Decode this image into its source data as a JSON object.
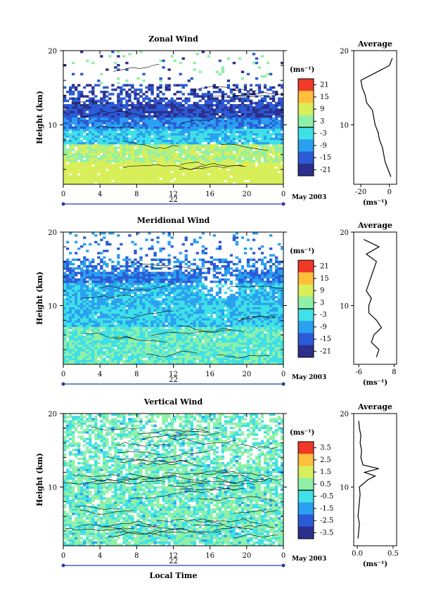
{
  "chart_data": [
    {
      "type": "heatmap",
      "title": "Zonal Wind",
      "ylabel": "Height (km)",
      "x_ticks": [
        "0",
        "4",
        "8",
        "12",
        "16",
        "20",
        "0"
      ],
      "x_range_hours": [
        0,
        24
      ],
      "y_range_km": [
        2,
        20
      ],
      "y_ticks": [
        "20",
        "10"
      ],
      "date_label": "May 2003",
      "day_label": "22",
      "colorbar": {
        "unit": "(ms⁻¹)",
        "ticks": [
          "21",
          "15",
          "9",
          "3",
          "-3",
          "-9",
          "-15",
          "-21"
        ],
        "range": [
          -24,
          24
        ]
      },
      "profile": {
        "title": "Average",
        "xlabel": "(ms⁻¹)",
        "x_ticks": [
          "-20",
          "0"
        ],
        "x_range": [
          -25,
          5
        ],
        "y_ticks": [
          "20",
          "10"
        ],
        "heights": [
          3,
          4,
          5,
          6,
          7,
          8,
          9,
          10,
          11,
          12,
          13,
          14,
          15,
          16,
          17,
          18,
          19
        ],
        "values": [
          1,
          -1,
          -3,
          -4,
          -5,
          -7,
          -8,
          -10,
          -11,
          -12,
          -16,
          -17,
          -19,
          -20,
          -10,
          0,
          2
        ]
      }
    },
    {
      "type": "heatmap",
      "title": "Meridional Wind",
      "ylabel": "Height (km)",
      "x_ticks": [
        "0",
        "4",
        "8",
        "12",
        "16",
        "20",
        "0"
      ],
      "x_range_hours": [
        0,
        24
      ],
      "y_range_km": [
        2,
        20
      ],
      "y_ticks": [
        "20",
        "10"
      ],
      "date_label": "May 2003",
      "day_label": "22",
      "colorbar": {
        "unit": "(ms⁻¹)",
        "ticks": [
          "21",
          "15",
          "9",
          "3",
          "-3",
          "-9",
          "-15",
          "-21"
        ],
        "range": [
          -24,
          24
        ]
      },
      "profile": {
        "title": "Average",
        "xlabel": "(ms⁻¹)",
        "x_ticks": [
          "-6",
          "8"
        ],
        "x_range": [
          -8,
          9
        ],
        "y_ticks": [
          "20",
          "10"
        ],
        "heights": [
          3,
          4,
          5,
          6,
          7,
          8,
          9,
          10,
          11,
          12,
          13,
          14,
          15,
          16,
          17,
          18,
          19
        ],
        "values": [
          1,
          2,
          -1,
          0,
          3,
          1,
          -2,
          -2,
          -1,
          -3,
          -2,
          -1,
          0,
          1,
          -3,
          2,
          -4
        ]
      }
    },
    {
      "type": "heatmap",
      "title": "Vertical Wind",
      "xlabel": "Local Time",
      "ylabel": "Height (km)",
      "x_ticks": [
        "0",
        "4",
        "8",
        "12",
        "16",
        "20",
        "0"
      ],
      "x_range_hours": [
        0,
        24
      ],
      "y_range_km": [
        2,
        20
      ],
      "y_ticks": [
        "20",
        "10"
      ],
      "date_label": "May 2003",
      "day_label": "22",
      "colorbar": {
        "unit": "(ms⁻¹)",
        "ticks": [
          "3.5",
          "2.5",
          "1.5",
          "0.5",
          "-0.5",
          "-1.5",
          "-2.5",
          "-3.5"
        ],
        "range": [
          -4,
          4
        ]
      },
      "profile": {
        "title": "Average",
        "xlabel": "(ms⁻¹)",
        "x_ticks": [
          "0.0",
          "0.5"
        ],
        "x_range": [
          -0.05,
          0.55
        ],
        "y_ticks": [
          "20",
          "10"
        ],
        "heights": [
          3,
          4,
          5,
          6,
          7,
          8,
          9,
          10,
          11,
          11.5,
          12,
          12.5,
          13,
          14,
          15,
          16,
          17,
          18,
          19
        ],
        "values": [
          0.01,
          0.02,
          0.03,
          0.01,
          0.02,
          0.03,
          0.04,
          0.03,
          0.15,
          0.25,
          0.1,
          0.3,
          0.08,
          0.05,
          0.06,
          0.04,
          0.05,
          0.03,
          0.02
        ]
      }
    }
  ]
}
